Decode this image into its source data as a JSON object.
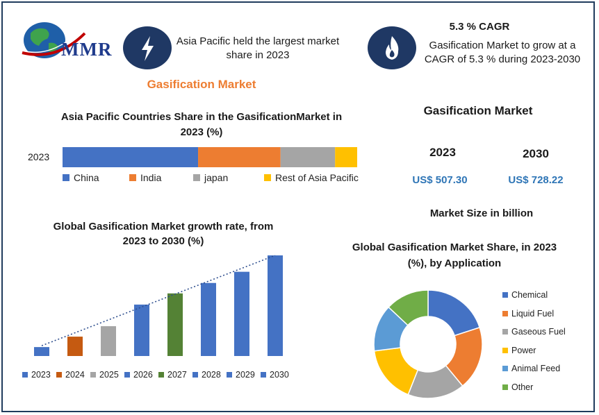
{
  "logo": {
    "text": "MMR"
  },
  "header": {
    "left_icon": "lightning-icon",
    "left_text": "Asia Pacific held the largest market share in 2023",
    "right_icon": "flame-icon",
    "cagr_title": "5.3 % CAGR",
    "cagr_text": "Gasification Market to grow at a CAGR of 5.3 % during 2023-2030"
  },
  "market_title": "Gasification Market",
  "market_size": {
    "title": "Gasification Market",
    "year_a": "2023",
    "year_b": "2030",
    "value_a": "US$ 507.30",
    "value_b": "US$ 728.22",
    "caption": "Market Size in billion"
  },
  "colors": {
    "blue": "#4472c4",
    "orange": "#ed7d31",
    "gray": "#a5a5a5",
    "yellow": "#ffc000",
    "lightblue": "#5b9bd5",
    "green": "#70ad47",
    "darkorange": "#c55a11",
    "darkgreen": "#548235",
    "navy": "#1f3864",
    "accent_title": "#ed7d31",
    "value_blue": "#2e75b6"
  },
  "chart_data": [
    {
      "type": "bar",
      "orientation": "horizontal-stacked",
      "title": "Asia Pacific Countries Share in the  GasificationMarket in 2023  (%)",
      "categories": [
        "2023"
      ],
      "series": [
        {
          "name": "China",
          "values": [
            46
          ]
        },
        {
          "name": "India",
          "values": [
            28
          ]
        },
        {
          "name": "japan",
          "values": [
            18.5
          ]
        },
        {
          "name": "Rest of Asia Pacific",
          "values": [
            7.5
          ]
        }
      ],
      "legend": "bottom",
      "grid": false
    },
    {
      "type": "bar",
      "title": "Global Gasification Market growth rate, from 2023 to 2030 (%)",
      "categories": [
        "2023",
        "2024",
        "2025",
        "2026",
        "2027",
        "2028",
        "2029",
        "2030"
      ],
      "values": [
        1.2,
        2.6,
        4.0,
        6.9,
        8.4,
        9.8,
        11.3,
        13.5
      ],
      "trendline": "dotted",
      "legend": "bottom",
      "grid": false
    },
    {
      "type": "pie",
      "subtype": "doughnut",
      "title": "Global Gasification Market Share, in 2023 (%), by Application",
      "categories": [
        "Chemical",
        "Liquid Fuel",
        "Gaseous Fuel",
        "Power",
        "Animal Feed",
        "Other"
      ],
      "values": [
        20,
        19,
        17,
        17,
        14,
        13
      ],
      "legend": "right"
    }
  ]
}
